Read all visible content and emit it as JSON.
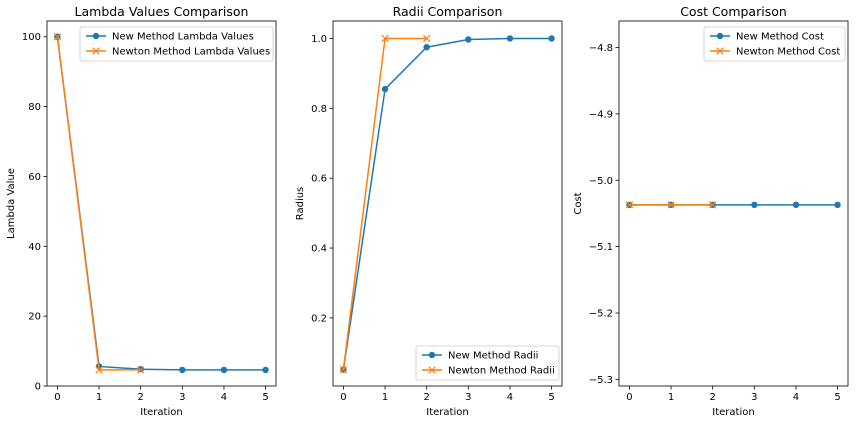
{
  "chart_data": [
    {
      "type": "line",
      "title": "Lambda Values Comparison",
      "xlabel": "Iteration",
      "ylabel": "Lambda Value",
      "xlim": [
        -0.25,
        5.25
      ],
      "ylim": [
        0,
        104.5
      ],
      "xticks": [
        0,
        1,
        2,
        3,
        4,
        5
      ],
      "yticks": [
        0,
        20,
        40,
        60,
        80,
        100
      ],
      "ytick_labels": [
        "0",
        "20",
        "40",
        "60",
        "80",
        "100"
      ],
      "legend": "upper right",
      "series": [
        {
          "name": "New Method Lambda Values",
          "color": "#1f77b4",
          "marker": "circle",
          "x": [
            0,
            1,
            2,
            3,
            4,
            5
          ],
          "values": [
            100,
            5.6,
            4.8,
            4.6,
            4.6,
            4.6
          ]
        },
        {
          "name": "Newton Method Lambda Values",
          "color": "#ff7f0e",
          "marker": "x",
          "x": [
            0,
            1,
            2
          ],
          "values": [
            100,
            4.6,
            4.6
          ]
        }
      ]
    },
    {
      "type": "line",
      "title": "Radii Comparison",
      "xlabel": "Iteration",
      "ylabel": "Radius",
      "xlim": [
        -0.25,
        5.25
      ],
      "ylim": [
        0.005,
        1.05
      ],
      "xticks": [
        0,
        1,
        2,
        3,
        4,
        5
      ],
      "yticks": [
        0.2,
        0.4,
        0.6,
        0.8,
        1.0
      ],
      "ytick_labels": [
        "0.2",
        "0.4",
        "0.6",
        "0.8",
        "1.0"
      ],
      "legend": "lower right",
      "series": [
        {
          "name": "New Method Radii",
          "color": "#1f77b4",
          "marker": "circle",
          "x": [
            0,
            1,
            2,
            3,
            4,
            5
          ],
          "values": [
            0.052,
            0.855,
            0.975,
            0.997,
            1.0,
            1.0
          ]
        },
        {
          "name": "Newton Method Radii",
          "color": "#ff7f0e",
          "marker": "x",
          "x": [
            0,
            1,
            2
          ],
          "values": [
            0.052,
            1.0,
            1.0
          ]
        }
      ]
    },
    {
      "type": "line",
      "title": "Cost Comparison",
      "xlabel": "Iteration",
      "ylabel": "Cost",
      "xlim": [
        -0.25,
        5.25
      ],
      "ylim": [
        -5.31,
        -4.76
      ],
      "xticks": [
        0,
        1,
        2,
        3,
        4,
        5
      ],
      "yticks": [
        -5.3,
        -5.2,
        -5.1,
        -5.0,
        -4.9,
        -4.8
      ],
      "ytick_labels": [
        "−5.3",
        "−5.2",
        "−5.1",
        "−5.0",
        "−4.9",
        "−4.8"
      ],
      "legend": "upper right",
      "series": [
        {
          "name": "New Method Cost",
          "color": "#1f77b4",
          "marker": "circle",
          "x": [
            0,
            1,
            2,
            3,
            4,
            5
          ],
          "values": [
            -5.037,
            -5.037,
            -5.037,
            -5.037,
            -5.037,
            -5.037
          ]
        },
        {
          "name": "Newton Method Cost",
          "color": "#ff7f0e",
          "marker": "x",
          "x": [
            0,
            1,
            2
          ],
          "values": [
            -5.037,
            -5.037,
            -5.037
          ]
        }
      ]
    }
  ]
}
